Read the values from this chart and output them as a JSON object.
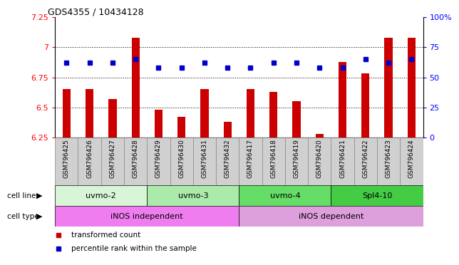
{
  "title": "GDS4355 / 10434128",
  "samples": [
    "GSM796425",
    "GSM796426",
    "GSM796427",
    "GSM796428",
    "GSM796429",
    "GSM796430",
    "GSM796431",
    "GSM796432",
    "GSM796417",
    "GSM796418",
    "GSM796419",
    "GSM796420",
    "GSM796421",
    "GSM796422",
    "GSM796423",
    "GSM796424"
  ],
  "transformed_counts": [
    6.65,
    6.65,
    6.57,
    7.08,
    6.48,
    6.42,
    6.65,
    6.38,
    6.65,
    6.63,
    6.55,
    6.28,
    6.88,
    6.78,
    7.08,
    7.08
  ],
  "percentile_ranks": [
    62,
    62,
    62,
    65,
    58,
    58,
    62,
    58,
    58,
    62,
    62,
    58,
    58,
    65,
    62,
    65
  ],
  "ylim_left": [
    6.25,
    7.25
  ],
  "ylim_right": [
    0,
    100
  ],
  "yticks_left": [
    6.25,
    6.5,
    6.75,
    7.0,
    7.25
  ],
  "yticks_right": [
    0,
    25,
    50,
    75,
    100
  ],
  "ytick_labels_left": [
    "6.25",
    "6.5",
    "6.75",
    "7",
    "7.25"
  ],
  "ytick_labels_right": [
    "0",
    "25",
    "50",
    "75",
    "100%"
  ],
  "cell_lines": [
    {
      "label": "uvmo-2",
      "start": 0,
      "end": 4,
      "color": "#d8f5d8"
    },
    {
      "label": "uvmo-3",
      "start": 4,
      "end": 8,
      "color": "#aaeaaa"
    },
    {
      "label": "uvmo-4",
      "start": 8,
      "end": 12,
      "color": "#66dd66"
    },
    {
      "label": "Spl4-10",
      "start": 12,
      "end": 16,
      "color": "#44cc44"
    }
  ],
  "cell_types": [
    {
      "label": "iNOS independent",
      "start": 0,
      "end": 8,
      "color": "#f07df0"
    },
    {
      "label": "iNOS dependent",
      "start": 8,
      "end": 16,
      "color": "#dda0dd"
    }
  ],
  "bar_color": "#cc0000",
  "dot_color": "#0000cc",
  "bar_width": 0.35,
  "legend_items": [
    {
      "color": "#cc0000",
      "label": "transformed count"
    },
    {
      "color": "#0000cc",
      "label": "percentile rank within the sample"
    }
  ],
  "grid_color": "black",
  "gridlines": [
    6.5,
    6.75,
    7.0
  ],
  "sample_box_color": "#d0d0d0",
  "sample_box_edge": "#888888"
}
